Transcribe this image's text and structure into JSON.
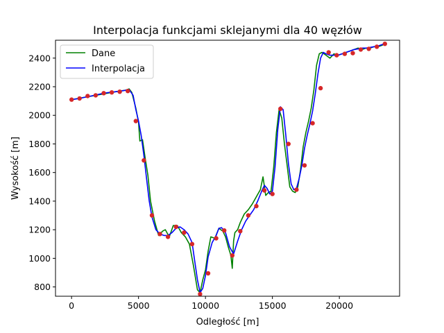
{
  "chart_data": {
    "type": "line",
    "title": "Interpolacja funkcjami sklejanymi dla 40 węzłów",
    "xlabel": "Odległość [m]",
    "ylabel": "Wysokość [m]",
    "xlim": [
      -1200,
      24500
    ],
    "ylim": [
      735,
      2525
    ],
    "xticks": [
      0,
      5000,
      10000,
      15000,
      20000
    ],
    "yticks": [
      800,
      1000,
      1200,
      1400,
      1600,
      1800,
      2000,
      2200,
      2400
    ],
    "grid": false,
    "legend_position": "top-left",
    "series": [
      {
        "name": "Dane",
        "color": "#008000",
        "x": [
          0,
          600,
          1200,
          1800,
          2400,
          3000,
          3600,
          4000,
          4300,
          4500,
          4800,
          5000,
          5100,
          5300,
          5500,
          5700,
          5900,
          6200,
          6500,
          6800,
          7000,
          7300,
          7600,
          7900,
          8200,
          8500,
          8800,
          9100,
          9400,
          9600,
          9800,
          10000,
          10200,
          10400,
          10700,
          11000,
          11300,
          11500,
          11700,
          11900,
          12000,
          12100,
          12200,
          12400,
          12600,
          12900,
          13200,
          13500,
          13800,
          14100,
          14300,
          14500,
          14700,
          14900,
          15100,
          15300,
          15500,
          15700,
          15900,
          16100,
          16300,
          16500,
          16700,
          16900,
          17100,
          17300,
          17500,
          17700,
          17900,
          18100,
          18300,
          18500,
          18700,
          19000,
          19300,
          19600,
          19900,
          20200,
          20500,
          20800,
          21100,
          21400,
          21700,
          22000,
          22300,
          22600,
          22900,
          23200,
          23400
        ],
        "y": [
          2110,
          2120,
          2130,
          2140,
          2150,
          2160,
          2170,
          2175,
          2185,
          2160,
          2050,
          1950,
          1820,
          1830,
          1700,
          1580,
          1400,
          1260,
          1160,
          1190,
          1200,
          1150,
          1230,
          1230,
          1180,
          1150,
          1100,
          950,
          780,
          760,
          850,
          920,
          1050,
          1150,
          1140,
          1210,
          1190,
          1150,
          1080,
          1020,
          930,
          1120,
          1180,
          1200,
          1250,
          1310,
          1340,
          1380,
          1430,
          1480,
          1570,
          1440,
          1460,
          1470,
          1640,
          1880,
          2040,
          1980,
          1800,
          1650,
          1500,
          1470,
          1460,
          1500,
          1620,
          1780,
          1880,
          1960,
          2050,
          2180,
          2350,
          2430,
          2440,
          2420,
          2400,
          2430,
          2420,
          2430,
          2440,
          2450,
          2460,
          2470,
          2460,
          2470,
          2470,
          2480,
          2480,
          2490,
          2500
        ]
      },
      {
        "name": "Interpolacja",
        "color": "#0000ff",
        "x": [
          0,
          600,
          1200,
          1800,
          2400,
          3000,
          3600,
          4000,
          4300,
          4600,
          4800,
          5000,
          5200,
          5400,
          5600,
          5800,
          6000,
          6300,
          6600,
          6900,
          7200,
          7500,
          7800,
          8100,
          8400,
          8700,
          9000,
          9200,
          9400,
          9600,
          9800,
          10000,
          10200,
          10500,
          10800,
          11000,
          11200,
          11500,
          11800,
          12100,
          12400,
          12700,
          13000,
          13300,
          13600,
          13900,
          14200,
          14400,
          14600,
          14800,
          15000,
          15200,
          15400,
          15600,
          15800,
          16000,
          16200,
          16400,
          16600,
          16800,
          17000,
          17200,
          17400,
          17600,
          17800,
          18000,
          18200,
          18400,
          18600,
          18800,
          19000,
          19300,
          19600,
          19900,
          20200,
          20500,
          20800,
          21100,
          21400,
          21700,
          22000,
          22300,
          22600,
          22900,
          23200,
          23400
        ],
        "y": [
          2110,
          2118,
          2130,
          2142,
          2155,
          2162,
          2168,
          2175,
          2180,
          2140,
          2040,
          1960,
          1860,
          1720,
          1560,
          1400,
          1290,
          1200,
          1170,
          1160,
          1160,
          1180,
          1210,
          1220,
          1200,
          1170,
          1110,
          980,
          850,
          760,
          790,
          880,
          1010,
          1110,
          1160,
          1210,
          1215,
          1180,
          1080,
          1030,
          1120,
          1200,
          1260,
          1300,
          1340,
          1400,
          1470,
          1510,
          1490,
          1450,
          1470,
          1640,
          1900,
          2060,
          2040,
          1860,
          1660,
          1520,
          1480,
          1490,
          1560,
          1650,
          1770,
          1860,
          1940,
          2030,
          2150,
          2290,
          2400,
          2440,
          2430,
          2420,
          2420,
          2420,
          2430,
          2440,
          2450,
          2460,
          2465,
          2470,
          2470,
          2475,
          2480,
          2485,
          2495,
          2500
        ]
      }
    ],
    "nodes": {
      "color": "#d62728",
      "x": [
        0,
        600,
        1200,
        1800,
        2400,
        3000,
        3600,
        4200,
        4800,
        5400,
        6000,
        6600,
        7200,
        7800,
        8400,
        9000,
        9600,
        10200,
        10800,
        11400,
        12000,
        12600,
        13200,
        13800,
        14400,
        15000,
        15600,
        16200,
        16800,
        17400,
        18000,
        18600,
        19200,
        19800,
        20400,
        21000,
        21600,
        22200,
        22800,
        23400
      ],
      "y": [
        2110,
        2118,
        2135,
        2140,
        2155,
        2160,
        2165,
        2170,
        1960,
        1685,
        1300,
        1170,
        1150,
        1220,
        1180,
        1100,
        750,
        895,
        1140,
        1195,
        1020,
        1190,
        1300,
        1365,
        1475,
        1450,
        2045,
        1800,
        1480,
        1650,
        1945,
        2190,
        2440,
        2420,
        2430,
        2435,
        2460,
        2465,
        2480,
        2500
      ]
    }
  }
}
